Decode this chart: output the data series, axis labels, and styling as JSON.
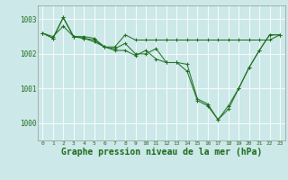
{
  "background_color": "#cce8e8",
  "grid_color": "#ffffff",
  "line_color": "#1a6b1a",
  "marker_color": "#1a6b1a",
  "xlabel": "Graphe pression niveau de la mer (hPa)",
  "xlabel_fontsize": 7,
  "ylim": [
    999.5,
    1003.4
  ],
  "xlim": [
    -0.5,
    23.5
  ],
  "yticks": [
    1000,
    1001,
    1002,
    1003
  ],
  "xticks": [
    0,
    1,
    2,
    3,
    4,
    5,
    6,
    7,
    8,
    9,
    10,
    11,
    12,
    13,
    14,
    15,
    16,
    17,
    18,
    19,
    20,
    21,
    22,
    23
  ],
  "series": [
    {
      "x": [
        0,
        1,
        2,
        3,
        4,
        5,
        6,
        7,
        8,
        9,
        10,
        11,
        12,
        13,
        14,
        15,
        16,
        17,
        18,
        19,
        20,
        21,
        22,
        23
      ],
      "y": [
        1002.6,
        1002.5,
        1002.8,
        1002.5,
        1002.5,
        1002.45,
        1002.2,
        1002.2,
        1002.55,
        1002.4,
        1002.4,
        1002.4,
        1002.4,
        1002.4,
        1002.4,
        1002.4,
        1002.4,
        1002.4,
        1002.4,
        1002.4,
        1002.4,
        1002.4,
        1002.4,
        1002.55
      ]
    },
    {
      "x": [
        0,
        1,
        2,
        3,
        4,
        5,
        6,
        7,
        8,
        9,
        10,
        11,
        12,
        13,
        14,
        15,
        16,
        17,
        18,
        19,
        20,
        21,
        22,
        23
      ],
      "y": [
        1002.6,
        1002.45,
        1003.05,
        1002.5,
        1002.45,
        1002.4,
        1002.2,
        1002.15,
        1002.3,
        1002.0,
        1002.0,
        1002.15,
        1001.75,
        1001.75,
        1001.7,
        1000.7,
        1000.55,
        1000.1,
        1000.5,
        1001.0,
        1001.6,
        1002.1,
        1002.55,
        1002.55
      ]
    },
    {
      "x": [
        0,
        1,
        2,
        3,
        4,
        5,
        6,
        7,
        8,
        9,
        10,
        11,
        12,
        13,
        14,
        15,
        16,
        17,
        18,
        19,
        20,
        21,
        22,
        23
      ],
      "y": [
        1002.6,
        1002.45,
        1003.05,
        1002.5,
        1002.45,
        1002.35,
        1002.2,
        1002.1,
        1002.1,
        1001.95,
        1002.1,
        1001.85,
        1001.75,
        1001.75,
        1001.5,
        1000.65,
        1000.5,
        1000.1,
        1000.4,
        1001.0,
        1001.6,
        1002.1,
        1002.55,
        1002.55
      ]
    }
  ]
}
